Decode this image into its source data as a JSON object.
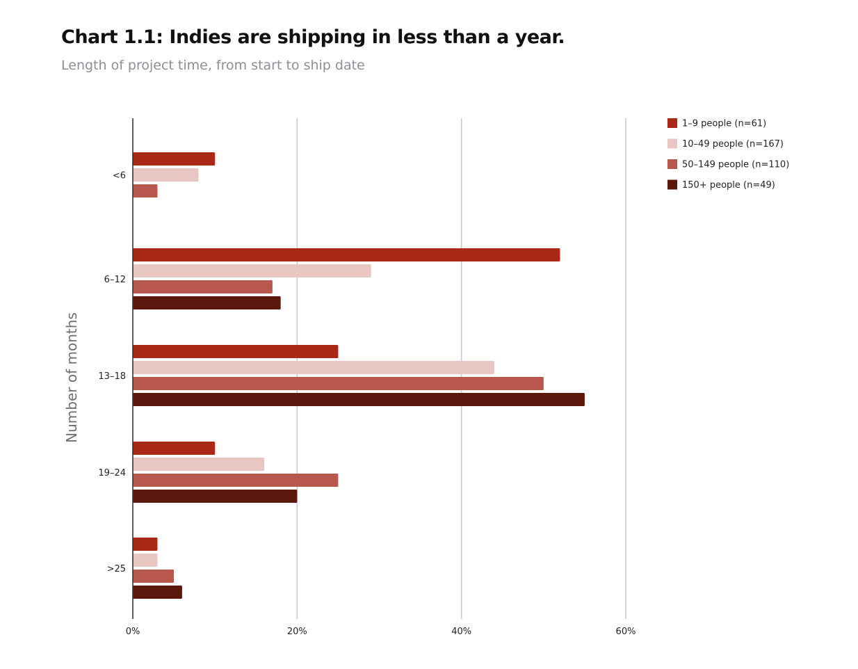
{
  "chart": {
    "title": "Chart 1.1: Indies are shipping in less than a year.",
    "subtitle": "Length of project time, from start to ship date"
  },
  "chart_data": {
    "type": "bar",
    "orientation": "horizontal",
    "title": "Chart 1.1: Indies are shipping in less than a year.",
    "subtitle": "Length of project time, from start to ship date",
    "ylabel": "Number of months",
    "xlabel": "",
    "categories": [
      "<6",
      "6–12",
      "13–18",
      "19–24",
      ">25"
    ],
    "series": [
      {
        "name": "1–9 people (n=61)",
        "color": "#a82a16",
        "values": [
          10,
          52,
          25,
          10,
          3
        ]
      },
      {
        "name": "10–49 people (n=167)",
        "color": "#e8c6c1",
        "values": [
          8,
          29,
          44,
          16,
          3
        ]
      },
      {
        "name": "50–149 people (n=110)",
        "color": "#b8584d",
        "values": [
          3,
          17,
          50,
          25,
          5
        ]
      },
      {
        "name": "150+ people (n=49)",
        "color": "#5c170d",
        "values": [
          0,
          18,
          55,
          20,
          6
        ]
      }
    ],
    "xlim": [
      0,
      60
    ],
    "xticks": [
      "0%",
      "20%",
      "40%",
      "60%"
    ],
    "xtick_values": [
      0,
      20,
      40,
      60
    ],
    "grid": true,
    "legend_position": "top-right"
  }
}
